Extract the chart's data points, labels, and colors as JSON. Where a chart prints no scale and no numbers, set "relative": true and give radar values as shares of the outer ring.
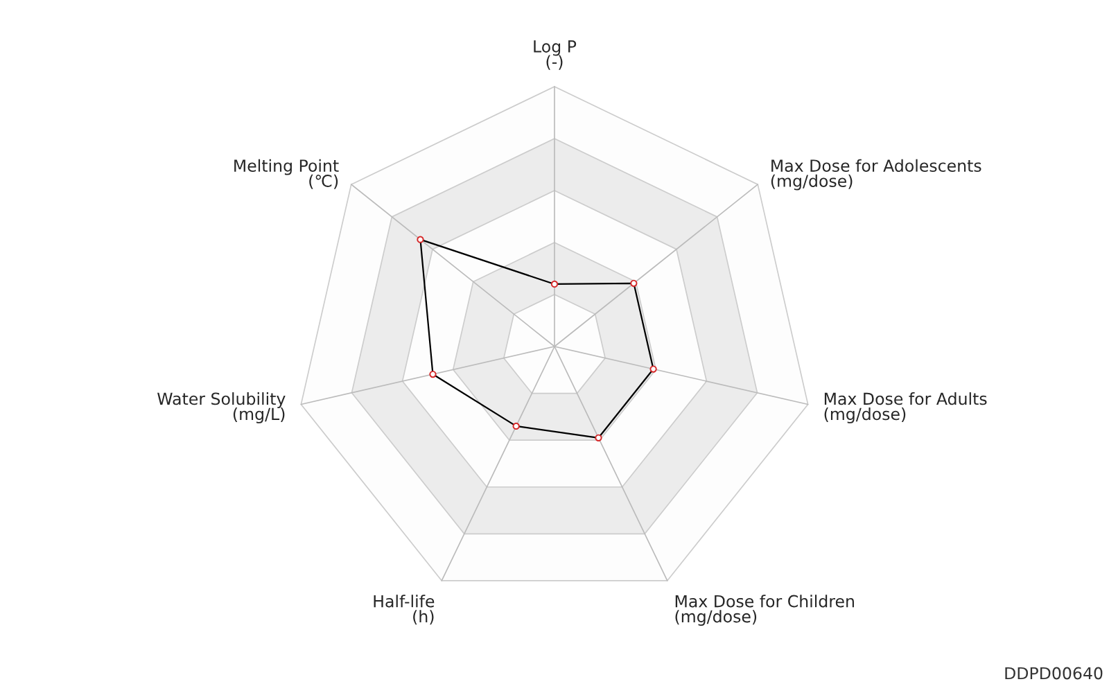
{
  "chart_data": {
    "type": "radar",
    "relative": true,
    "grid": true,
    "marker": "circle",
    "legend": false,
    "categories": [
      "Log P\n(-)",
      "Max Dose for Adolescents\n(mg/dose)",
      "Max Dose for Adults\n(mg/dose)",
      "Max Dose for Children\n(mg/dose)",
      "Half-life\n(h)",
      "Water Solubility\n(mg/L)",
      "Melting Point\n(℃)"
    ],
    "series": [
      {
        "color": "#000000",
        "colors": [
          "#d62728",
          "#d62728",
          "#d62728",
          "#d62728",
          "#d62728",
          "#d62728",
          "#d62728"
        ],
        "values": [
          0.24,
          0.39,
          0.39,
          0.39,
          0.34,
          0.48,
          0.66
        ]
      }
    ],
    "annotations": [
      "DDPD00640"
    ]
  }
}
